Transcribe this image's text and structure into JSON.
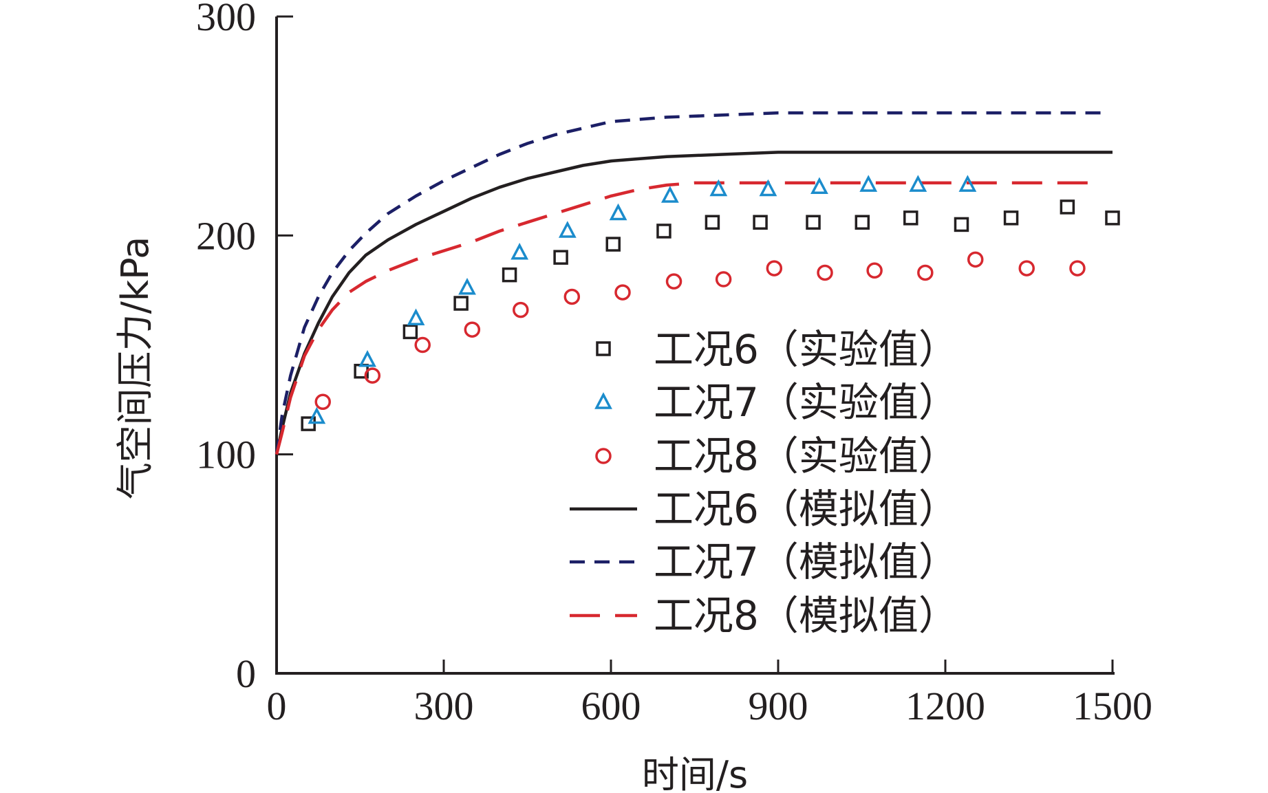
{
  "chart_data": {
    "type": "scatter",
    "title": "",
    "xlabel": "时间/s",
    "ylabel": "气空间压力/kPa",
    "xlim": [
      0,
      1500
    ],
    "ylim": [
      0,
      300
    ],
    "xticks": [
      0,
      300,
      600,
      900,
      1200,
      1500
    ],
    "yticks": [
      0,
      100,
      200,
      300
    ],
    "xtick_labels": [
      "0",
      "300",
      "600",
      "900",
      "1200",
      "1500"
    ],
    "ytick_labels": [
      "0",
      "100",
      "200",
      "300"
    ],
    "grid": false,
    "legend_position": "center-right",
    "series": [
      {
        "name": "工况6（实验值）",
        "kind": "marker",
        "marker": "square",
        "color": "#231f20",
        "x": [
          57,
          152,
          240,
          331,
          418,
          510,
          604,
          695,
          782,
          868,
          963,
          1051,
          1138,
          1229,
          1318,
          1419,
          1500
        ],
        "y": [
          114,
          138,
          156,
          169,
          182,
          190,
          196,
          202,
          206,
          206,
          206,
          206,
          208,
          205,
          208,
          213,
          208
        ]
      },
      {
        "name": "工况7（实验值）",
        "kind": "marker",
        "marker": "triangle",
        "color": "#1b8ccc",
        "x": [
          72,
          163,
          250,
          342,
          436,
          522,
          613,
          706,
          793,
          882,
          974,
          1062,
          1151,
          1240
        ],
        "y": [
          117,
          143,
          162,
          176,
          192,
          202,
          210,
          218,
          221,
          221,
          222,
          223,
          223,
          223
        ]
      },
      {
        "name": "工况8（实验值）",
        "kind": "marker",
        "marker": "circle",
        "color": "#d7282f",
        "x": [
          83,
          172,
          262,
          351,
          438,
          530,
          621,
          713,
          802,
          893,
          984,
          1073,
          1164,
          1254,
          1346,
          1437
        ],
        "y": [
          124,
          136,
          150,
          157,
          166,
          172,
          174,
          179,
          180,
          185,
          183,
          184,
          183,
          189,
          185,
          185
        ]
      },
      {
        "name": "工况6（模拟值）",
        "kind": "line",
        "dash": "solid",
        "color": "#231f20",
        "x": [
          0,
          10,
          25,
          50,
          75,
          100,
          130,
          160,
          200,
          250,
          300,
          350,
          400,
          450,
          500,
          550,
          600,
          650,
          700,
          800,
          900,
          1000,
          1100,
          1200,
          1300,
          1400,
          1500
        ],
        "y": [
          100,
          112,
          128,
          146,
          160,
          172,
          183,
          191,
          198,
          205,
          211,
          217,
          222,
          226,
          229,
          232,
          234,
          235,
          236,
          237,
          238,
          238,
          238,
          238,
          238,
          238,
          238
        ]
      },
      {
        "name": "工况7（模拟值）",
        "kind": "line",
        "dash": "short",
        "color": "#1c1f66",
        "x": [
          0,
          10,
          25,
          50,
          75,
          100,
          130,
          160,
          200,
          250,
          300,
          350,
          400,
          450,
          500,
          550,
          600,
          650,
          700,
          800,
          900,
          1000,
          1100,
          1200,
          1300,
          1400,
          1485
        ],
        "y": [
          100,
          118,
          136,
          158,
          172,
          183,
          193,
          201,
          210,
          218,
          225,
          231,
          237,
          242,
          246,
          249,
          252,
          253,
          254,
          255,
          256,
          256,
          256,
          256,
          256,
          256,
          256
        ]
      },
      {
        "name": "工况8（模拟值）",
        "kind": "line",
        "dash": "long",
        "color": "#d7282f",
        "x": [
          0,
          10,
          25,
          50,
          75,
          100,
          130,
          160,
          200,
          250,
          300,
          350,
          400,
          450,
          500,
          550,
          600,
          650,
          700,
          750,
          800,
          900,
          1000,
          1100,
          1200,
          1300,
          1460
        ],
        "y": [
          100,
          110,
          126,
          145,
          157,
          166,
          174,
          179,
          184,
          189,
          193,
          197,
          202,
          206,
          210,
          214,
          218,
          221,
          223,
          224,
          224,
          224,
          224,
          224,
          224,
          224,
          224
        ]
      }
    ]
  }
}
